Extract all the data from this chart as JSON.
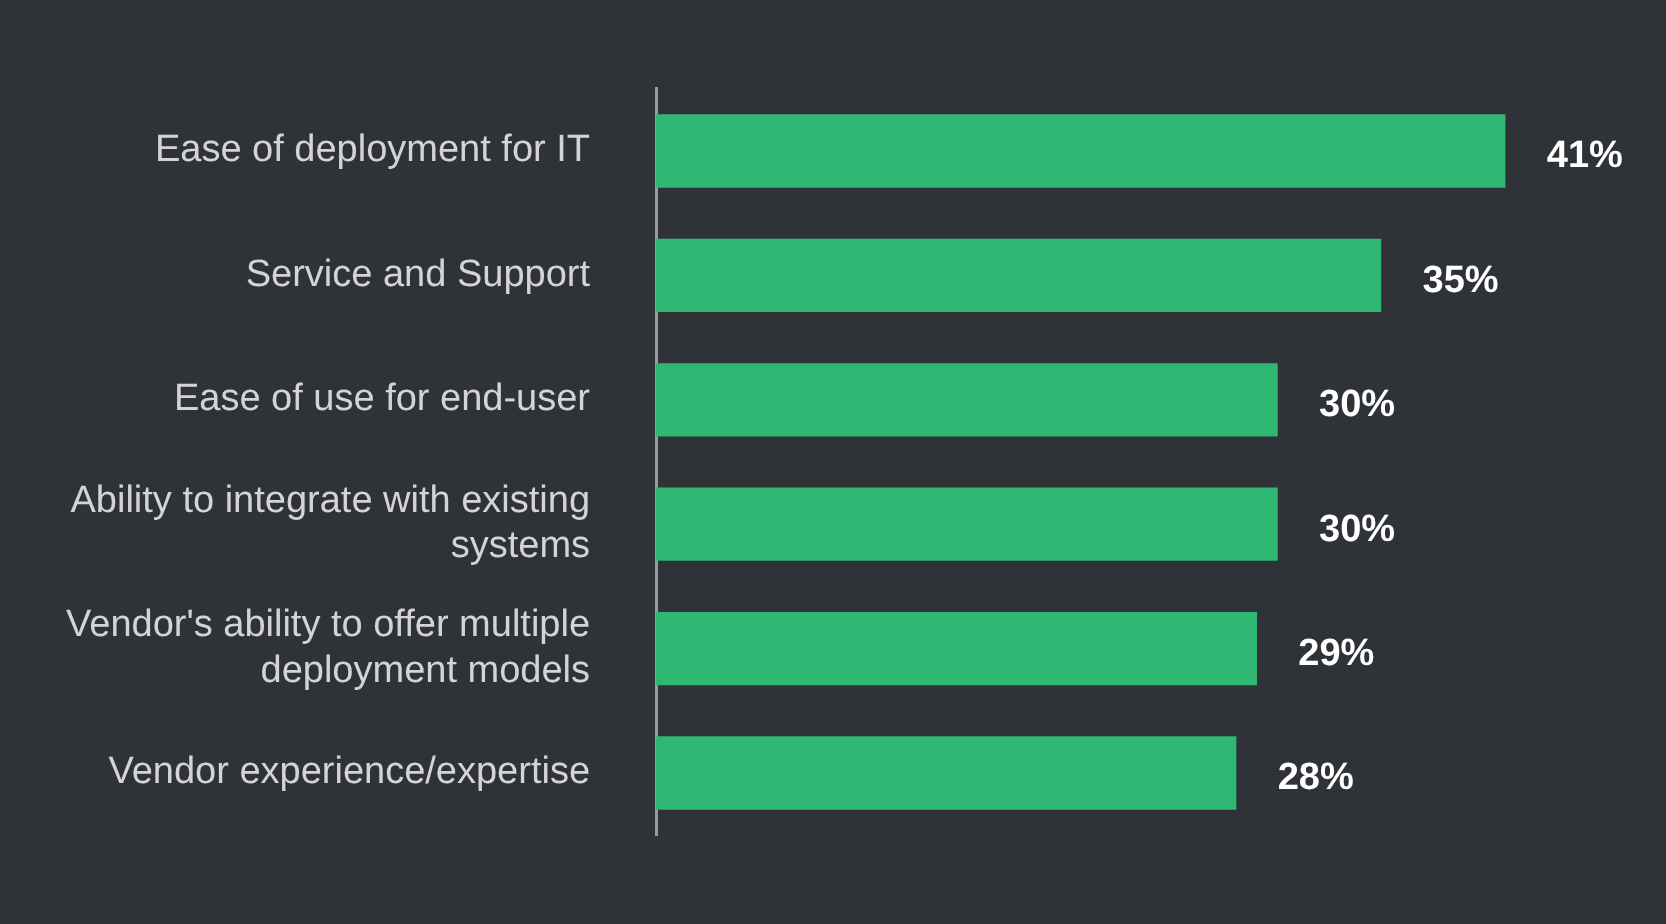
{
  "chart_data": {
    "type": "bar",
    "orientation": "horizontal",
    "categories": [
      "Ease of deployment for IT",
      "Service and Support",
      "Ease of use for end-user",
      "Ability to integrate with existing systems",
      "Vendor's ability to offer multiple deployment models",
      "Vendor experience/expertise"
    ],
    "values": [
      41,
      35,
      30,
      30,
      29,
      28
    ],
    "value_labels": [
      "41%",
      "35%",
      "30%",
      "30%",
      "29%",
      "28%"
    ],
    "color": "#2fb874",
    "tick_labels": "y",
    "grid": false,
    "legend": false
  }
}
